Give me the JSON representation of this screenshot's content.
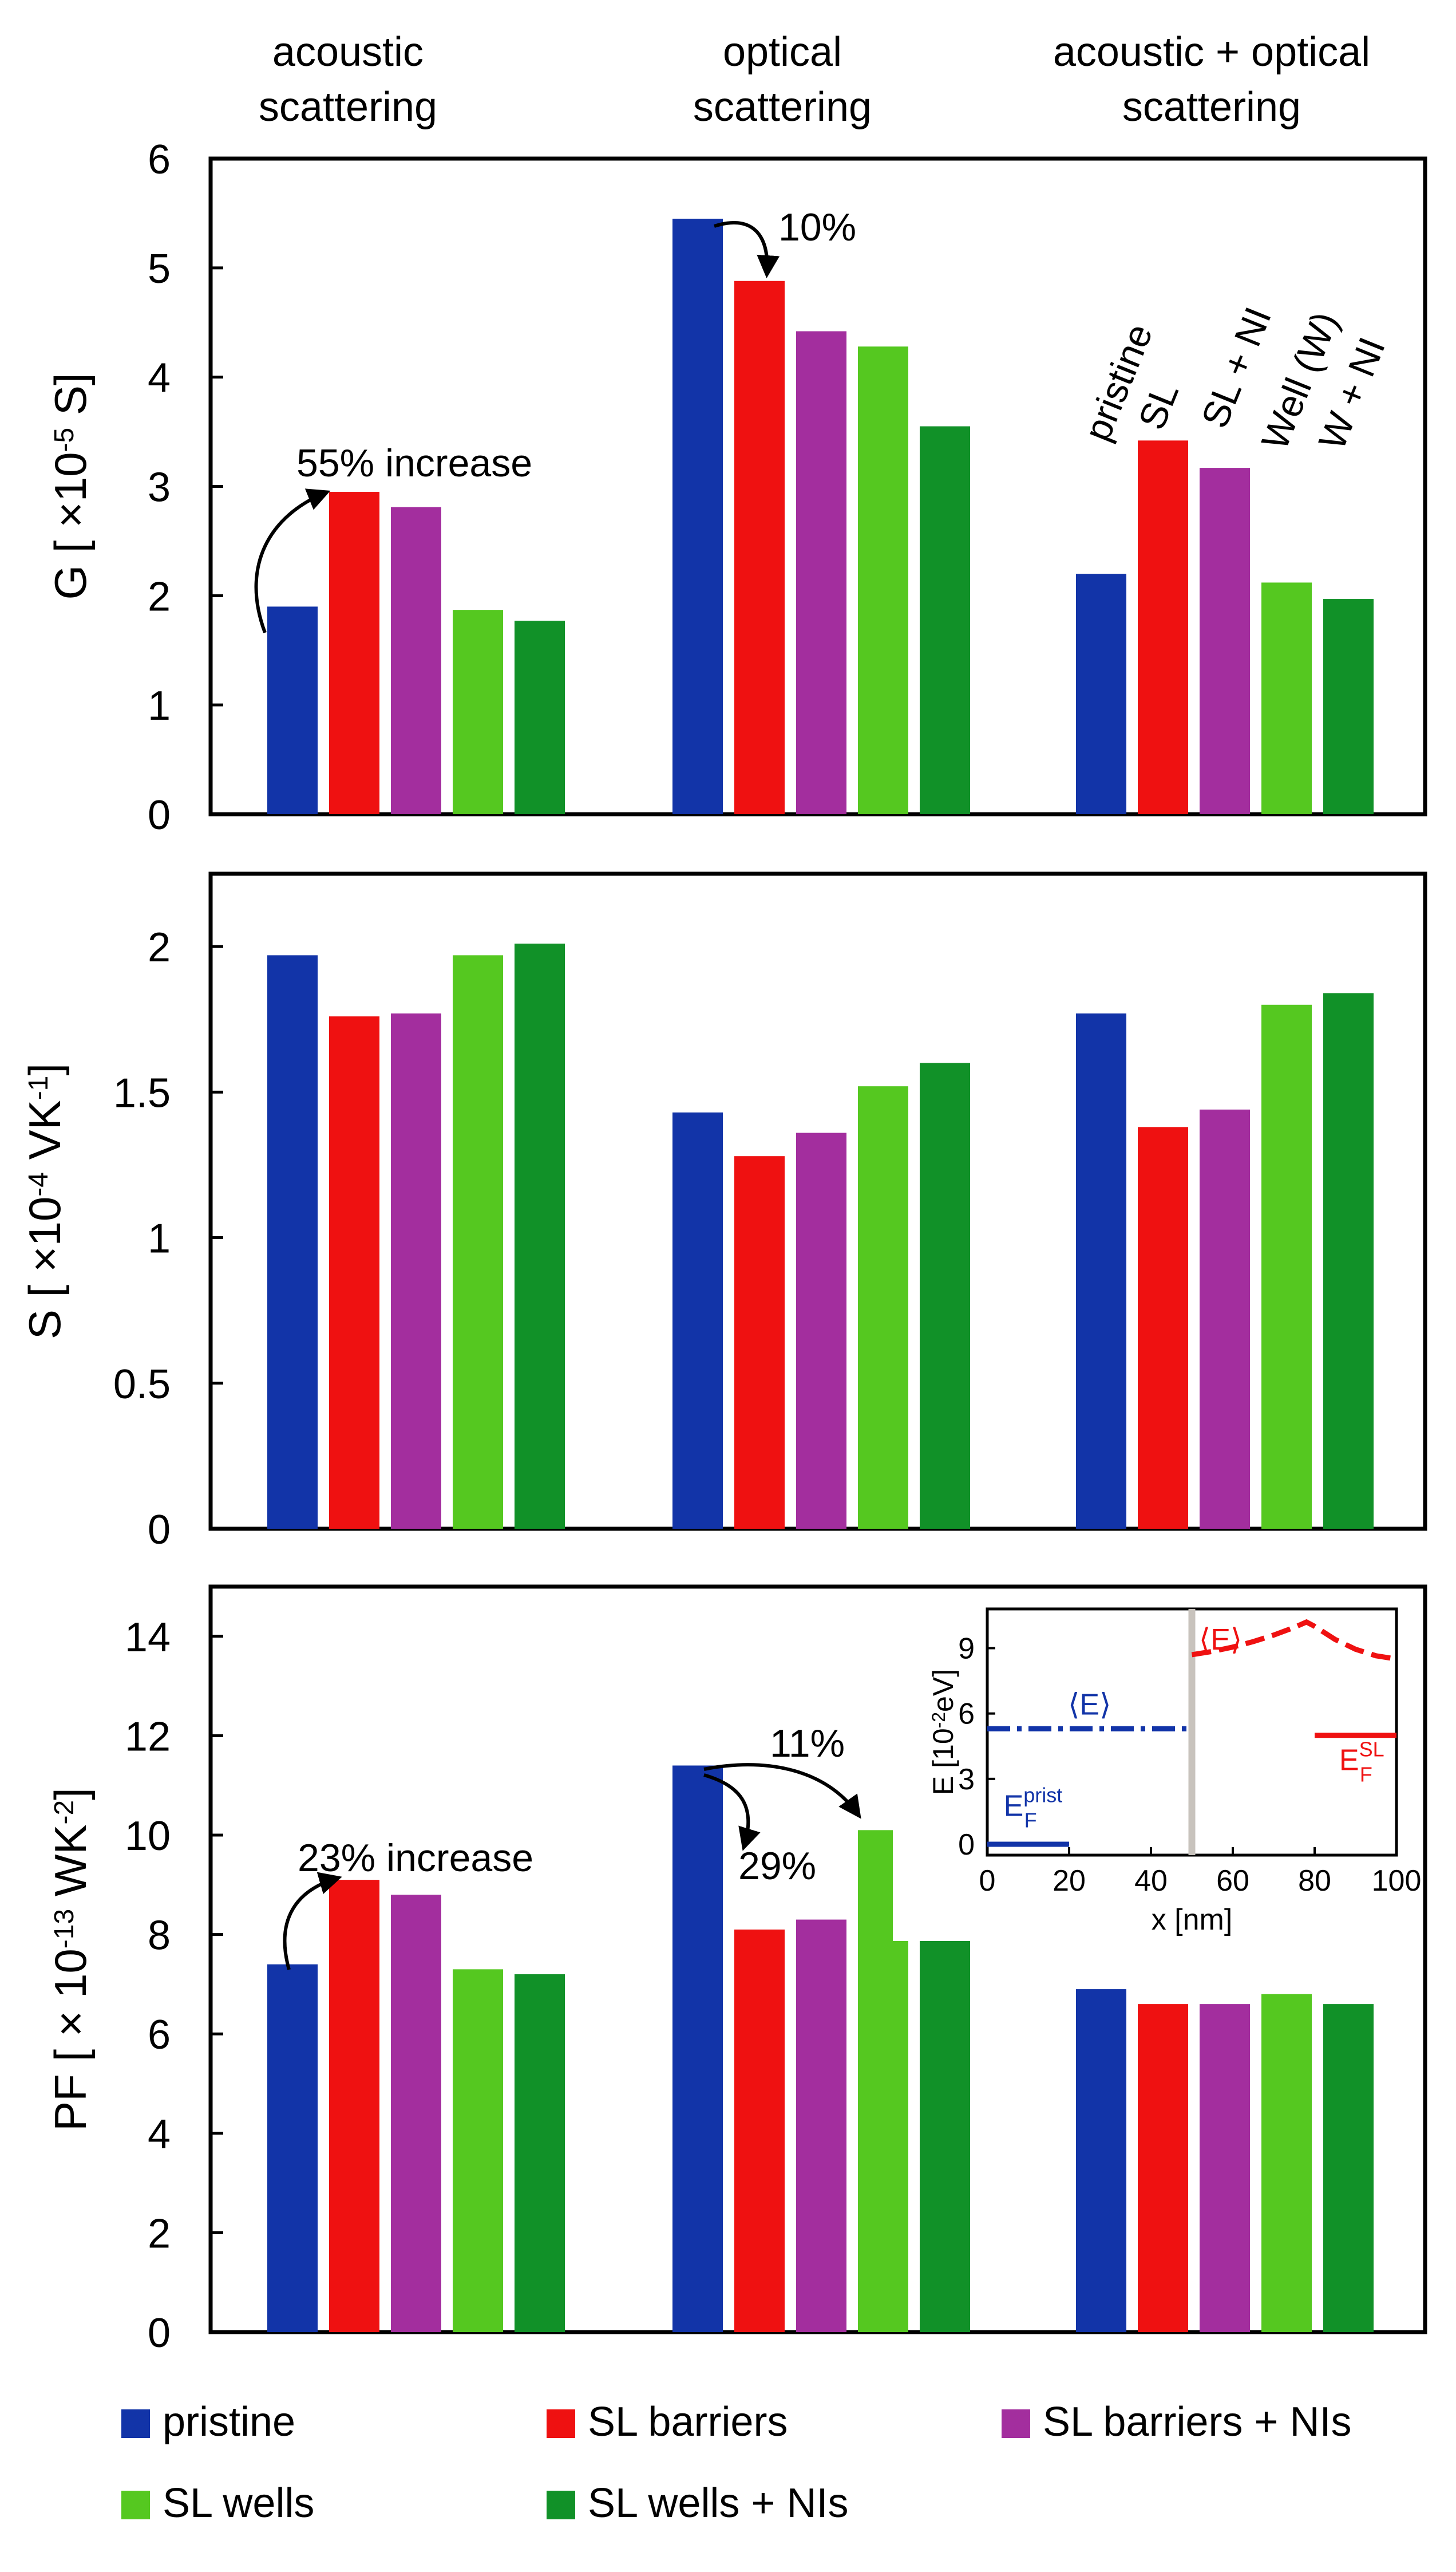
{
  "colors": {
    "pristine": "#1234a8",
    "sl_barriers": "#ef1111",
    "sl_barriers_ni": "#a32e9e",
    "sl_wells": "#55c820",
    "sl_wells_ni": "#119128"
  },
  "column_headers": [
    [
      "acoustic",
      "scattering"
    ],
    [
      "optical",
      "scattering"
    ],
    [
      "acoustic + optical",
      "scattering"
    ]
  ],
  "chart_data": [
    {
      "type": "bar",
      "ylabel_main": "G [ ×10",
      "ylabel_sup": "-5",
      "ylabel_end": " S]",
      "ylim": [
        0,
        6
      ],
      "yticks": [
        "0",
        "1",
        "2",
        "3",
        "4",
        "5",
        "6"
      ],
      "categories": [
        "acoustic scattering",
        "optical scattering",
        "acoustic + optical scattering"
      ],
      "series": [
        {
          "name": "pristine",
          "values": [
            1.9,
            5.45,
            2.2
          ]
        },
        {
          "name": "SL barriers",
          "values": [
            2.95,
            4.88,
            3.42
          ]
        },
        {
          "name": "SL barriers + NIs",
          "values": [
            2.81,
            4.42,
            3.17
          ]
        },
        {
          "name": "SL wells",
          "values": [
            1.87,
            4.28,
            2.12
          ]
        },
        {
          "name": "SL wells + NIs",
          "values": [
            1.77,
            3.55,
            1.97
          ]
        }
      ],
      "annotations": [
        "55% increase",
        "10%"
      ],
      "bar_labels": [
        "pristine",
        "SL",
        "SL + NI",
        "Well (W)",
        "W + NI"
      ]
    },
    {
      "type": "bar",
      "ylabel_main": "S  [ ×10",
      "ylabel_sup": "-4",
      "ylabel_end": " VK",
      "ylabel_sup2": "-1",
      "ylabel_end2": "]",
      "ylim": [
        0,
        2.25
      ],
      "yticks": [
        "0",
        "0.5",
        "1",
        "1.5",
        "2"
      ],
      "categories": [
        "acoustic scattering",
        "optical scattering",
        "acoustic + optical scattering"
      ],
      "series": [
        {
          "name": "pristine",
          "values": [
            1.97,
            1.43,
            1.77
          ]
        },
        {
          "name": "SL barriers",
          "values": [
            1.76,
            1.28,
            1.38
          ]
        },
        {
          "name": "SL barriers + NIs",
          "values": [
            1.77,
            1.36,
            1.44
          ]
        },
        {
          "name": "SL wells",
          "values": [
            1.97,
            1.52,
            1.8
          ]
        },
        {
          "name": "SL wells + NIs",
          "values": [
            2.01,
            1.6,
            1.84
          ]
        }
      ]
    },
    {
      "type": "bar",
      "ylabel_main": "PF [ × 10",
      "ylabel_sup": "-13",
      "ylabel_end": " WK",
      "ylabel_sup2": "-2",
      "ylabel_end2": "]",
      "ylim": [
        0,
        15
      ],
      "yticks": [
        "0",
        "2",
        "4",
        "6",
        "8",
        "10",
        "12",
        "14"
      ],
      "categories": [
        "acoustic scattering",
        "optical scattering",
        "acoustic + optical scattering"
      ],
      "series": [
        {
          "name": "pristine",
          "values": [
            7.4,
            11.4,
            6.9
          ]
        },
        {
          "name": "SL barriers",
          "values": [
            9.1,
            8.1,
            6.6
          ]
        },
        {
          "name": "SL barriers + NIs",
          "values": [
            8.8,
            8.3,
            6.6
          ]
        },
        {
          "name": "SL wells",
          "values": [
            7.3,
            10.1,
            6.8
          ]
        },
        {
          "name": "SL wells + NIs",
          "values": [
            7.2,
            9.2,
            6.6
          ]
        }
      ],
      "annotations": [
        "23% increase",
        "11%",
        "29%"
      ]
    },
    {
      "type": "line",
      "xlabel": "x [nm]",
      "ylabel_main": "E [10",
      "ylabel_sup": "-2",
      "ylabel_end": "eV]",
      "xlim": [
        0,
        100
      ],
      "ylim": [
        -0.5,
        10.8
      ],
      "xticks": [
        "0",
        "20",
        "40",
        "60",
        "80",
        "100"
      ],
      "yticks": [
        "0",
        "3",
        "6",
        "9"
      ],
      "series": [
        {
          "name": "E_F pristine",
          "x": [
            0,
            20
          ],
          "y": [
            0,
            0
          ]
        },
        {
          "name": "<E> pristine",
          "x": [
            0,
            50
          ],
          "y": [
            5.3,
            5.3
          ]
        },
        {
          "name": "<E> SL",
          "x": [
            50,
            55,
            60,
            65,
            70,
            75,
            78,
            80,
            85,
            90,
            95,
            100
          ],
          "y": [
            8.7,
            8.85,
            9.05,
            9.3,
            9.6,
            9.95,
            10.2,
            10.0,
            9.4,
            8.95,
            8.65,
            8.5
          ]
        },
        {
          "name": "E_F SL",
          "x": [
            80,
            100
          ],
          "y": [
            5.0,
            5.0
          ]
        }
      ],
      "labels": {
        "e_avg": "⟨E⟩",
        "ef": "E",
        "ef_sub": "F",
        "prist_sup": "prist",
        "sl_sup": "SL"
      }
    }
  ],
  "legend": [
    {
      "key": "pristine",
      "label": "pristine"
    },
    {
      "key": "sl_barriers",
      "label": "SL barriers"
    },
    {
      "key": "sl_barriers_ni",
      "label": "SL barriers + NIs"
    },
    {
      "key": "sl_wells",
      "label": "SL wells"
    },
    {
      "key": "sl_wells_ni",
      "label": "SL wells + NIs"
    }
  ]
}
